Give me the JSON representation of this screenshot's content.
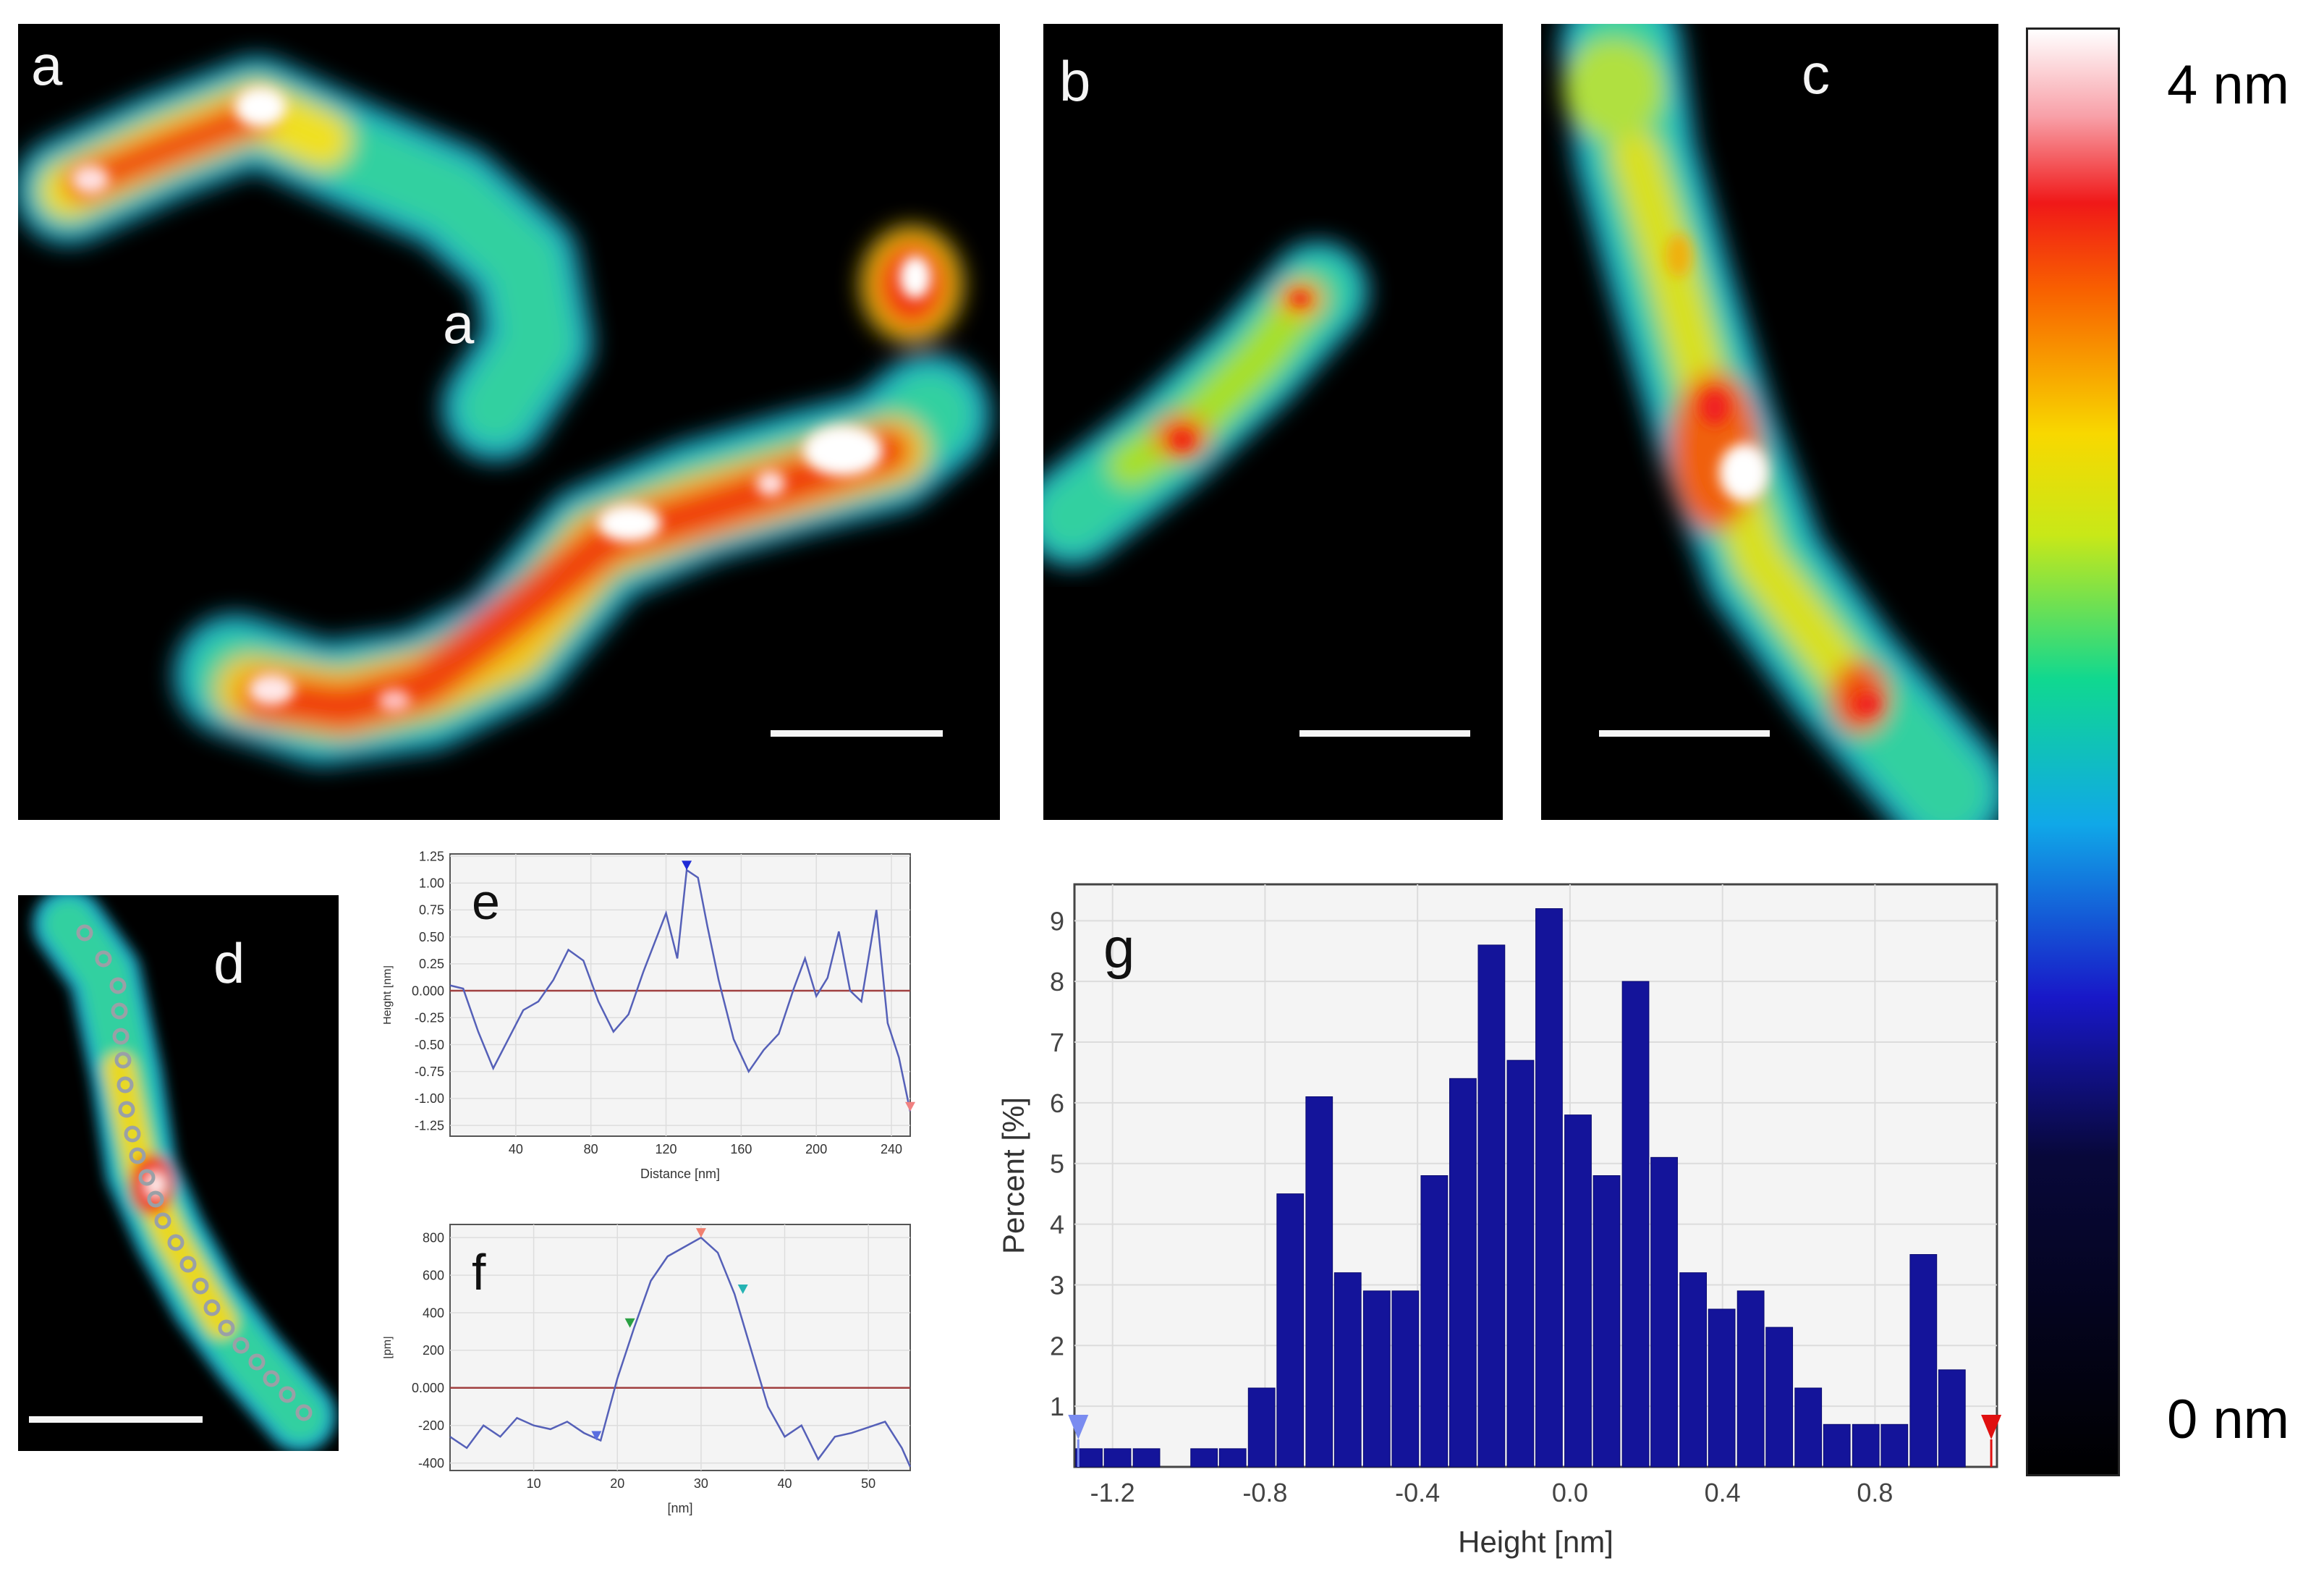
{
  "panels": {
    "a": {
      "label": "a",
      "inner_label": "a"
    },
    "b": {
      "label": "b"
    },
    "c": {
      "label": "c"
    },
    "d": {
      "label": "d"
    }
  },
  "colorbar": {
    "max_label": "4 nm",
    "min_label": "0 nm"
  },
  "chart_data": [
    {
      "id": "e",
      "panel_label": "e",
      "type": "line",
      "xlabel": "Distance [nm]",
      "ylabel": "Height [nm]",
      "xlim": [
        5,
        250
      ],
      "ylim": [
        -1.35,
        1.27
      ],
      "xticks": [
        40,
        80,
        120,
        160,
        200,
        240
      ],
      "yticks": [
        1.25,
        1.0,
        0.75,
        0.5,
        0.25,
        0.0,
        -0.25,
        -0.5,
        -0.75,
        -1.0,
        -1.25
      ],
      "ytick_labels": [
        "1.25",
        "1.00",
        "0.75",
        "0.50",
        "0.25",
        "0.000",
        "-0.25",
        "-0.50",
        "-0.75",
        "-1.00",
        "-1.25"
      ],
      "baseline": 0,
      "x": [
        5,
        12,
        20,
        28,
        36,
        44,
        52,
        60,
        68,
        76,
        84,
        92,
        100,
        108,
        114,
        120,
        126,
        131,
        137,
        142,
        148,
        156,
        164,
        172,
        180,
        188,
        194,
        200,
        206,
        212,
        218,
        224,
        232,
        238,
        244,
        250
      ],
      "values": [
        0.05,
        0.02,
        -0.38,
        -0.72,
        -0.45,
        -0.18,
        -0.1,
        0.1,
        0.38,
        0.28,
        -0.1,
        -0.38,
        -0.22,
        0.18,
        0.45,
        0.72,
        0.3,
        1.12,
        1.05,
        0.6,
        0.1,
        -0.45,
        -0.75,
        -0.55,
        -0.4,
        0.02,
        0.3,
        -0.05,
        0.12,
        0.55,
        0.0,
        -0.1,
        0.75,
        -0.3,
        -0.62,
        -1.12
      ],
      "markers": [
        {
          "x": 131,
          "color": "#1f2bd6"
        },
        {
          "x": 250,
          "color": "#f08080"
        }
      ]
    },
    {
      "id": "f",
      "panel_label": "f",
      "type": "line",
      "xlabel": "[nm]",
      "ylabel": "[pm]",
      "xlim": [
        0,
        55
      ],
      "ylim": [
        -440,
        870
      ],
      "xticks": [
        10,
        20,
        30,
        40,
        50
      ],
      "yticks": [
        800,
        600,
        400,
        200,
        0,
        -200,
        -400
      ],
      "ytick_labels": [
        "800",
        "600",
        "400",
        "200",
        "0.000",
        "-200",
        "-400"
      ],
      "baseline": 0,
      "x": [
        0,
        2,
        4,
        6,
        8,
        10,
        12,
        14,
        16,
        18,
        20,
        22,
        24,
        26,
        28,
        30,
        32,
        34,
        36,
        38,
        40,
        42,
        44,
        46,
        48,
        50,
        52,
        54,
        55
      ],
      "values": [
        -260,
        -320,
        -200,
        -260,
        -160,
        -200,
        -220,
        -180,
        -240,
        -280,
        50,
        320,
        570,
        700,
        750,
        800,
        720,
        500,
        200,
        -100,
        -260,
        -200,
        -380,
        -260,
        -240,
        -210,
        -180,
        -320,
        -420
      ],
      "markers": [
        {
          "x": 17.5,
          "color": "#5a6ee0"
        },
        {
          "x": 21.5,
          "color": "#2aa043"
        },
        {
          "x": 30,
          "color": "#f08070"
        },
        {
          "x": 35,
          "color": "#25b3b3"
        }
      ]
    },
    {
      "id": "g",
      "panel_label": "g",
      "type": "bar",
      "title": "",
      "xlabel": "Height [nm]",
      "ylabel": "Percent [%]",
      "xlim": [
        -1.3,
        1.12
      ],
      "ylim": [
        0,
        9.6
      ],
      "xticks": [
        -1.2,
        -0.8,
        -0.4,
        0.0,
        0.4,
        0.8
      ],
      "xtick_labels": [
        "-1.2",
        "-0.8",
        "-0.4",
        "0.0",
        "0.4",
        "0.8"
      ],
      "yticks": [
        1,
        2,
        3,
        4,
        5,
        6,
        7,
        8,
        9
      ],
      "bin_width": 0.0755,
      "x": [
        -1.262,
        -1.187,
        -1.111,
        -1.036,
        -0.96,
        -0.885,
        -0.809,
        -0.734,
        -0.658,
        -0.583,
        -0.507,
        -0.432,
        -0.356,
        -0.281,
        -0.206,
        -0.13,
        -0.055,
        0.021,
        0.096,
        0.172,
        0.247,
        0.323,
        0.398,
        0.474,
        0.549,
        0.625,
        0.7,
        0.776,
        0.851,
        0.927,
        1.002,
        1.078
      ],
      "values": [
        0.3,
        0.3,
        0.3,
        0.0,
        0.3,
        0.3,
        1.3,
        4.5,
        6.1,
        3.2,
        2.9,
        2.9,
        4.8,
        6.4,
        8.6,
        6.7,
        9.2,
        5.8,
        4.8,
        8.0,
        5.1,
        3.2,
        2.6,
        2.9,
        2.3,
        1.3,
        0.7,
        0.7,
        0.7,
        3.5,
        1.6,
        0.0
      ],
      "markers": [
        {
          "x": -1.29,
          "color": "#7a8cf0"
        },
        {
          "x": 1.105,
          "color": "#e01010"
        }
      ]
    }
  ]
}
